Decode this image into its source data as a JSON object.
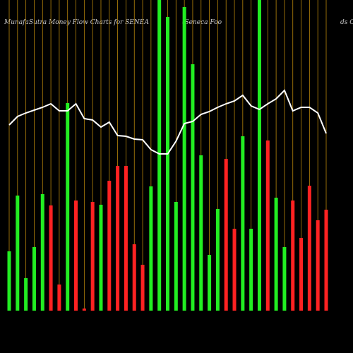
{
  "chart_data": {
    "type": "bar",
    "title": "MunafaSutra  Money Flow  Charts for SENEA",
    "subtitle": "(Seneca  Foo",
    "subtitle_tail": "ds C",
    "values": [
      84,
      163,
      46,
      90,
      165,
      149,
      37,
      294,
      156,
      3,
      154,
      150,
      184,
      205,
      205,
      94,
      65,
      176,
      440,
      416,
      154,
      430,
      349,
      220,
      79,
      144,
      215,
      116,
      247,
      116,
      440,
      241,
      160,
      90,
      156,
      103,
      177,
      128,
      143
    ],
    "colors": [
      "#22ee22",
      "#22ee22",
      "#22ee22",
      "#22ee22",
      "#22ee22",
      "#ff2222",
      "#ff2222",
      "#22ee22",
      "#ff2222",
      "#ff2222",
      "#ff2222",
      "#22ee22",
      "#ff2222",
      "#ff2222",
      "#ff2222",
      "#ff2222",
      "#ff2222",
      "#22ee22",
      "#22ee22",
      "#22ee22",
      "#22ee22",
      "#22ee22",
      "#22ee22",
      "#22ee22",
      "#22ee22",
      "#22ee22",
      "#ff2222",
      "#ff2222",
      "#22ee22",
      "#22ee22",
      "#22ee22",
      "#ff2222",
      "#22ee22",
      "#22ee22",
      "#ff2222",
      "#ff2222",
      "#ff2222",
      "#ff2222",
      "#ff2222"
    ],
    "line": {
      "color": "#ffffff",
      "values": [
        263,
        275,
        280,
        284,
        288,
        293,
        283,
        283,
        293,
        272,
        270,
        260,
        267,
        248,
        247,
        243,
        242,
        228,
        222,
        222,
        240,
        265,
        268,
        278,
        282,
        288,
        293,
        297,
        305,
        290,
        285,
        293,
        300,
        312,
        283,
        288,
        288,
        280,
        251
      ]
    },
    "ylim": [
      0,
      440
    ],
    "gridline_color": "#b8860b"
  }
}
